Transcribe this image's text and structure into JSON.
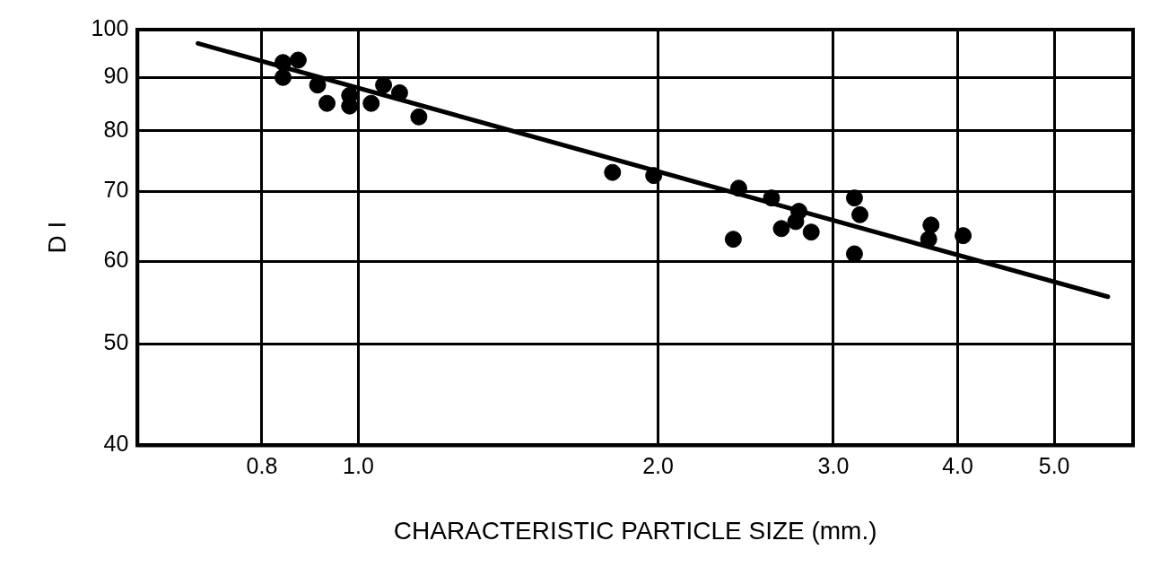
{
  "chart_data": {
    "type": "scatter",
    "xlabel": "CHARACTERISTIC PARTICLE SIZE (mm.)",
    "ylabel": "D I",
    "log": "xy",
    "grid": true,
    "legend": false,
    "marker": "circle",
    "xlim": [
      0.6,
      6
    ],
    "xticks": [
      0.8,
      {
        "value": 1,
        "label": "1.0"
      },
      {
        "value": 2,
        "label": "2.0"
      },
      {
        "value": 3,
        "label": "3.0"
      },
      {
        "value": 4,
        "label": "4.0"
      },
      {
        "value": 5,
        "label": "5.0"
      }
    ],
    "ylim": [
      40,
      100
    ],
    "yticks": [
      40,
      50,
      60,
      70,
      80,
      90,
      100
    ],
    "series": [
      {
        "color": "#000000",
        "x": [
          0.84,
          0.84,
          0.87,
          0.91,
          0.93,
          0.98,
          0.98,
          1.03,
          1.06,
          1.1,
          1.15,
          1.8,
          1.98,
          2.41,
          2.38,
          2.6,
          2.77,
          2.75,
          2.66,
          2.85,
          3.15,
          3.19,
          3.15,
          3.76,
          3.74,
          4.05
        ],
        "values": [
          90,
          93,
          93.5,
          88.5,
          85,
          86.5,
          84.5,
          85,
          88.5,
          87,
          82.5,
          73,
          72.5,
          70.5,
          63,
          69,
          67,
          65.5,
          64.5,
          64,
          69,
          66.5,
          61,
          65,
          63,
          63.5
        ]
      },
      {
        "type": "line",
        "color": "#000000",
        "x": [
          0.69,
          5.66
        ],
        "values": [
          97,
          55.5
        ],
        "marker": "none"
      }
    ]
  }
}
